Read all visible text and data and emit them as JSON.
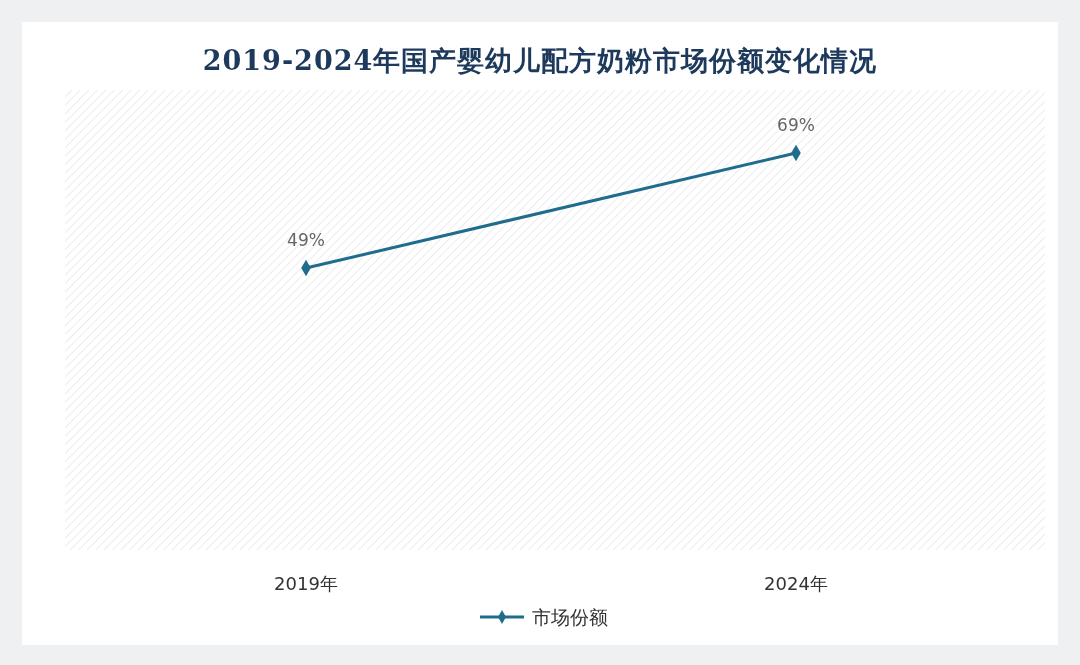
{
  "chart_data": {
    "type": "line",
    "title": "2019-2024年国产婴幼儿配方奶粉市场份额变化情况",
    "categories": [
      "2019年",
      "2024年"
    ],
    "series": [
      {
        "name": "市场份额",
        "color": "#1f6c8c",
        "values": [
          49,
          69
        ],
        "value_labels": [
          "49%",
          "69%"
        ]
      }
    ],
    "tick_labels": "x",
    "marker": "diamond",
    "line_style": "solid",
    "legend": "bottom"
  }
}
